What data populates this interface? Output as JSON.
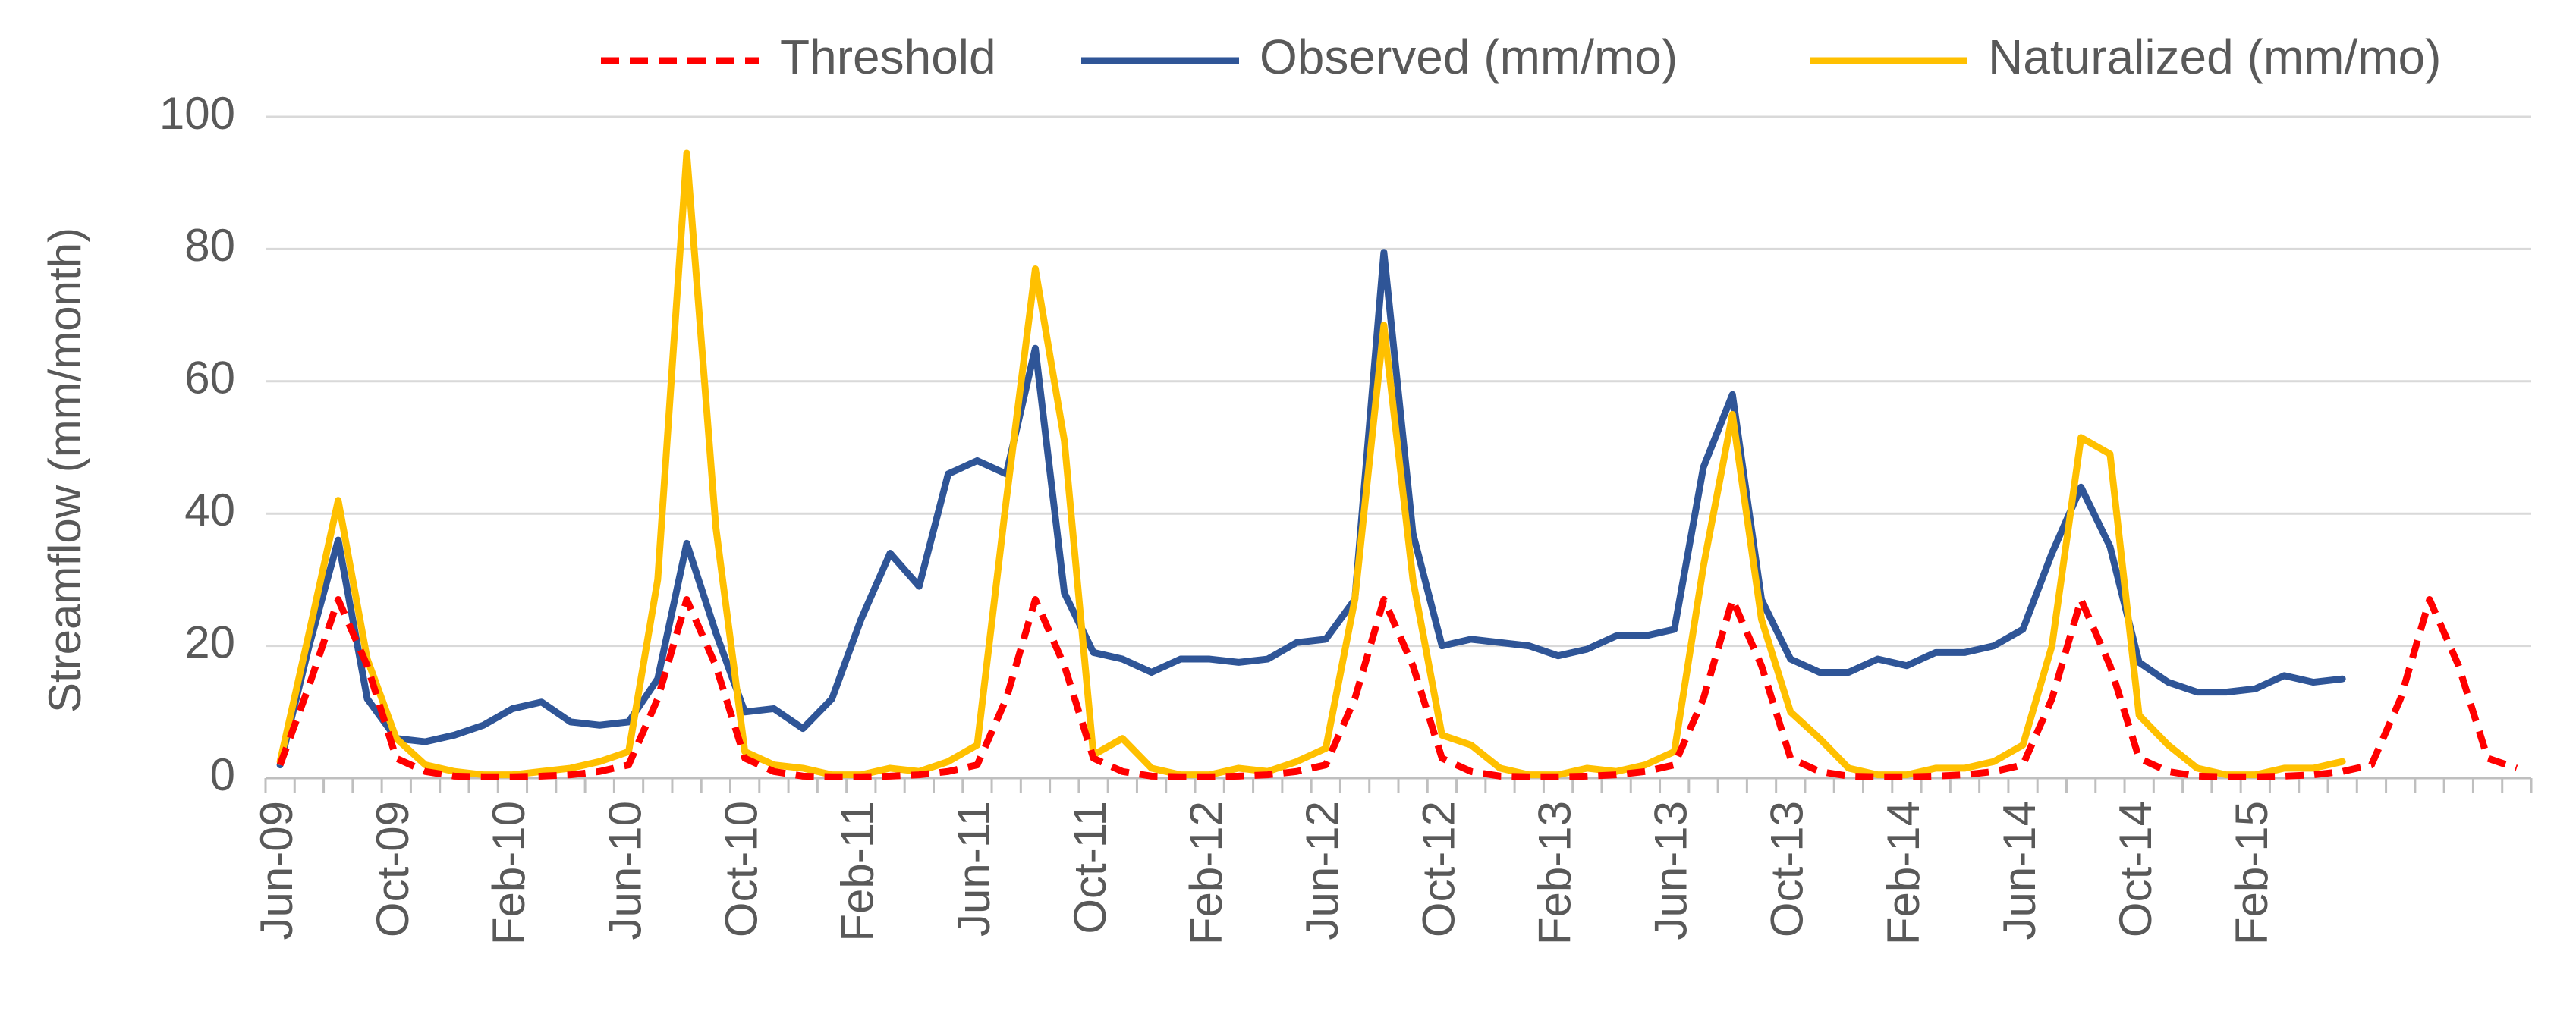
{
  "chart_data": {
    "type": "line",
    "title": "",
    "xlabel": "",
    "ylabel": "Streamflow (mm/month)",
    "ylim": [
      0,
      100
    ],
    "yticks": [
      0,
      20,
      40,
      60,
      80,
      100
    ],
    "grid": true,
    "legend_position": "top-right",
    "start_month": "Jun-09",
    "n_months": 78,
    "x_tick_labels": [
      "Jun-09",
      "Oct-09",
      "Feb-10",
      "Jun-10",
      "Oct-10",
      "Feb-11",
      "Jun-11",
      "Oct-11",
      "Feb-12",
      "Jun-12",
      "Oct-12",
      "Feb-13",
      "Jun-13",
      "Oct-13",
      "Feb-14",
      "Jun-14",
      "Oct-14",
      "Feb-15"
    ],
    "series": [
      {
        "name": "Threshold",
        "color": "#ff0000",
        "style": "dashed",
        "values": [
          2,
          14,
          27,
          17,
          3,
          1,
          0.3,
          0.2,
          0.2,
          0.3,
          0.5,
          1,
          2,
          12,
          27,
          17,
          3,
          1,
          0.3,
          0.2,
          0.2,
          0.3,
          0.5,
          1,
          2,
          12,
          27,
          17,
          3,
          1,
          0.3,
          0.2,
          0.2,
          0.3,
          0.5,
          1,
          2,
          12,
          27,
          17,
          3,
          1,
          0.3,
          0.2,
          0.2,
          0.3,
          0.5,
          1,
          2,
          12,
          27,
          17,
          3,
          1,
          0.3,
          0.2,
          0.2,
          0.3,
          0.5,
          1,
          2,
          12,
          27,
          17,
          3,
          1,
          0.3,
          0.2,
          0.2,
          0.3,
          0.5,
          1,
          2,
          12,
          27,
          17,
          3,
          1.5
        ]
      },
      {
        "name": "Observed (mm/mo)",
        "color": "#2f5597",
        "style": "solid",
        "values": [
          2,
          20,
          36,
          12,
          6,
          5.5,
          6.5,
          8,
          10.5,
          11.5,
          8.5,
          8,
          8.5,
          15,
          35.5,
          22,
          10,
          10.5,
          7.5,
          12,
          24,
          34,
          29,
          46,
          48,
          46,
          65,
          28,
          19,
          18,
          16,
          18,
          18,
          17.5,
          18,
          20.5,
          21,
          27,
          79.5,
          37,
          20,
          21,
          20.5,
          20,
          18.5,
          19.5,
          21.5,
          21.5,
          22.5,
          47,
          58,
          27,
          18,
          16,
          16,
          18,
          17,
          19,
          19,
          20,
          22.5,
          34,
          44,
          35,
          17.5,
          14.5,
          13,
          13,
          13.5,
          15.5,
          14.5,
          15
        ]
      },
      {
        "name": "Naturalized (mm/mo)",
        "color": "#ffc000",
        "style": "solid",
        "values": [
          2.5,
          22,
          42,
          18,
          6,
          2,
          1,
          0.5,
          0.5,
          1,
          1.5,
          2.5,
          4,
          30,
          94.5,
          38,
          4,
          2,
          1.5,
          0.5,
          0.5,
          1.5,
          1,
          2.5,
          5,
          42,
          77,
          51,
          3.5,
          6,
          1.5,
          0.5,
          0.5,
          1.5,
          1,
          2.5,
          4.5,
          27,
          68.5,
          30,
          6.5,
          5,
          1.5,
          0.5,
          0.5,
          1.5,
          1,
          2,
          4,
          32,
          55,
          24,
          10,
          6,
          1.5,
          0.5,
          0.5,
          1.5,
          1.5,
          2.5,
          5,
          20,
          51.5,
          49,
          9.5,
          5,
          1.5,
          0.5,
          0.5,
          1.5,
          1.5,
          2.5
        ]
      }
    ]
  }
}
